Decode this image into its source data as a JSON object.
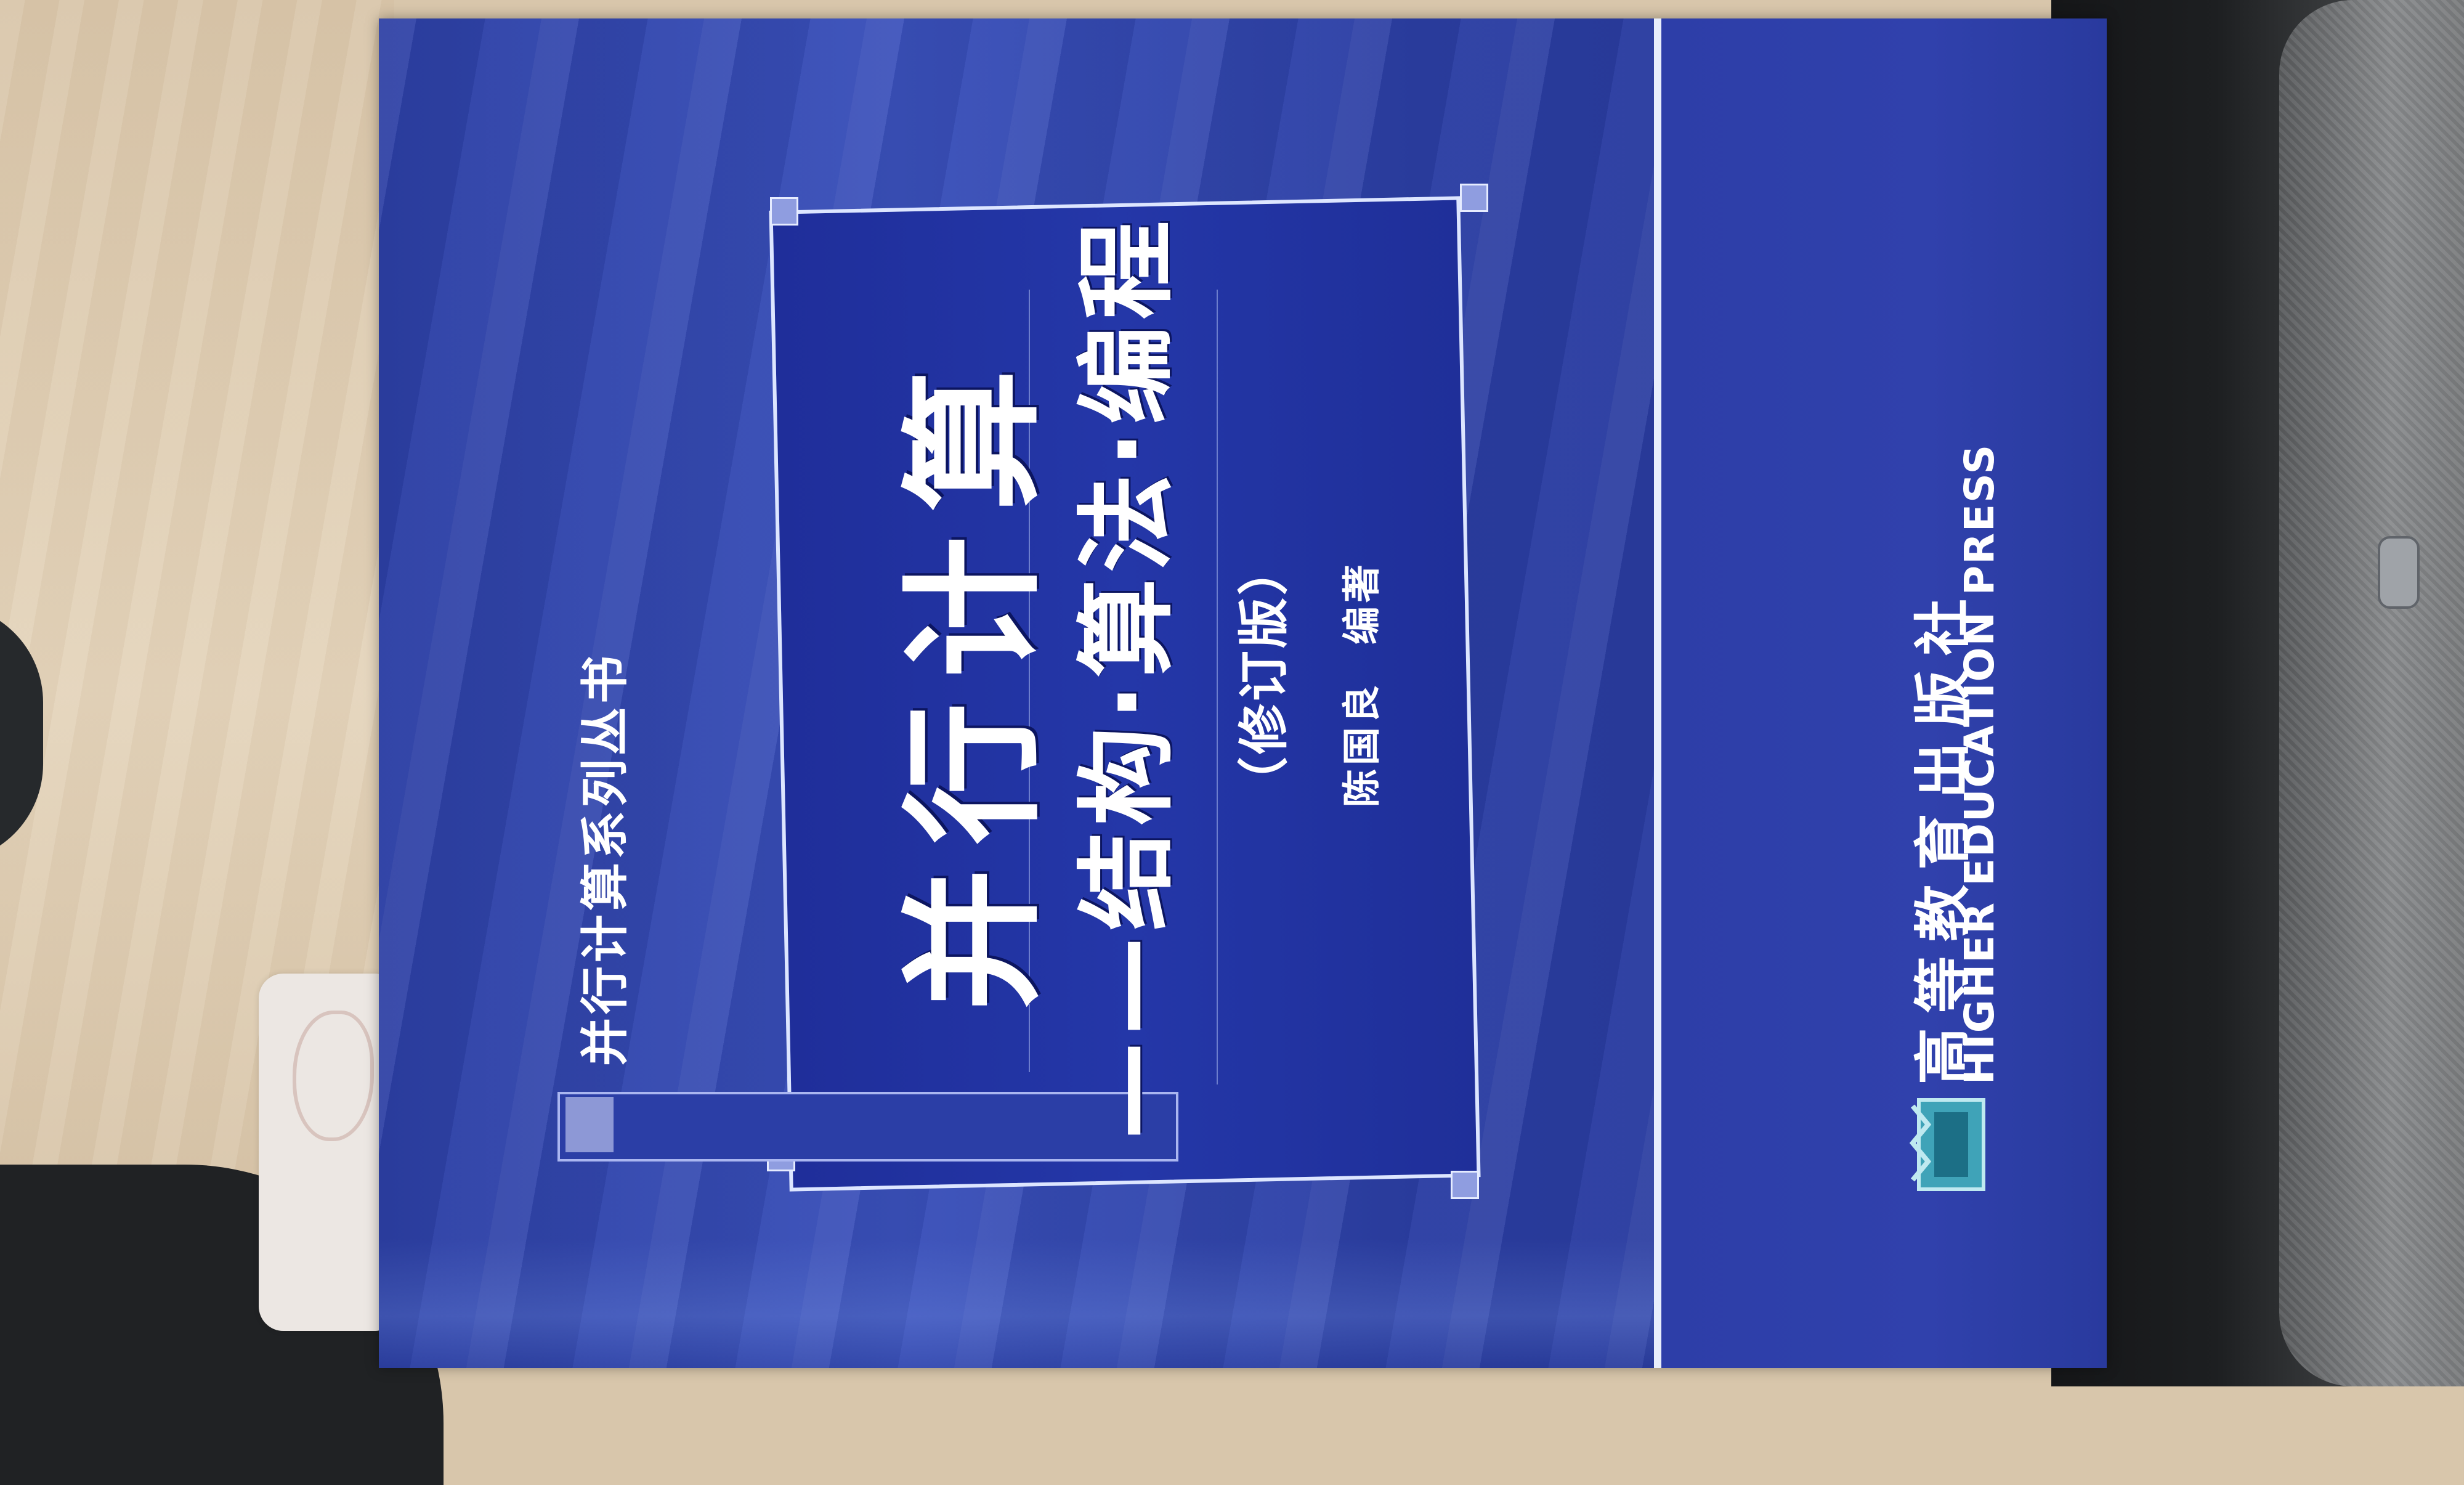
{
  "cover": {
    "series": "并行计算系列丛书",
    "title": "并行计算",
    "subtitle": "——结构·算法·编程",
    "edition": "（修订版）",
    "author": "陈国良",
    "author_role": "编著",
    "publisher_cn": "高等教育出版社",
    "publisher_en": "HIGHER EDUCATION PRESS",
    "logo_icon": "press-logo-icon"
  },
  "colors": {
    "cover_blue": "#2c3fa4",
    "frame_blue": "#2437a8",
    "text_white": "#ffffff",
    "accent_light": "#dde6ff"
  }
}
